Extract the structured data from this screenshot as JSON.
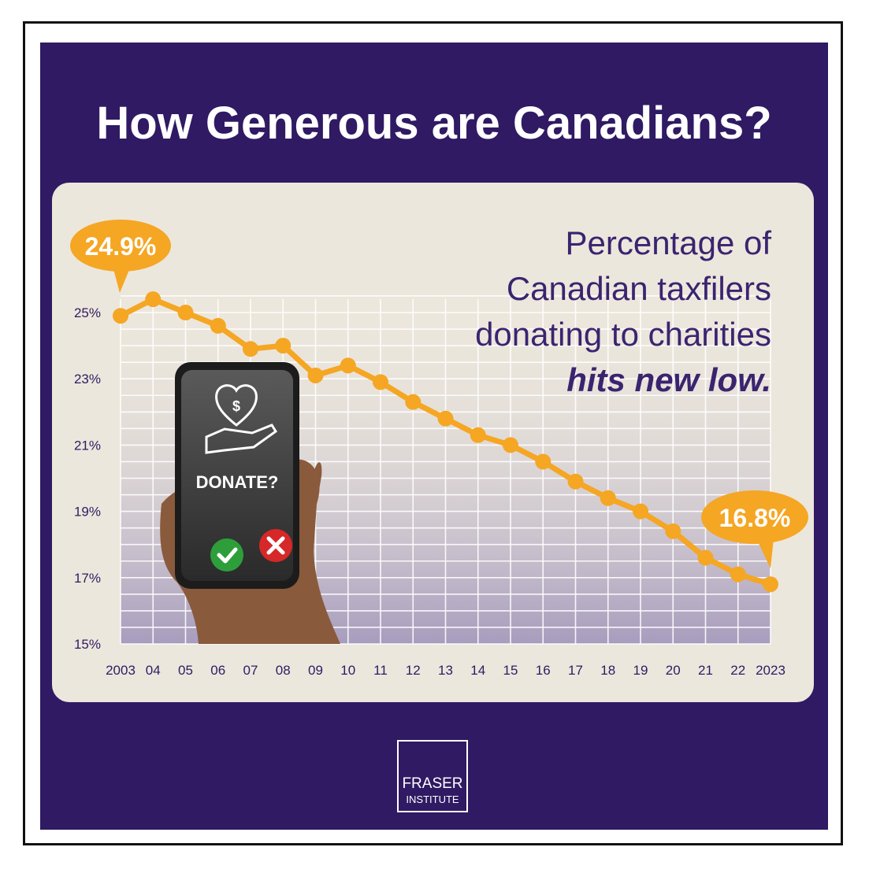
{
  "title": "How Generous are Canadians?",
  "headline": {
    "line1": "Percentage of",
    "line2": "Canadian taxfilers",
    "line3": "donating to charities",
    "line4": "hits new low."
  },
  "callouts": {
    "start": "24.9%",
    "end": "16.8%"
  },
  "phone": {
    "prompt": "DONATE?",
    "icon": "heart-dollar-hand-icon",
    "yes_icon": "check-icon",
    "no_icon": "x-icon"
  },
  "logo": {
    "line1": "FRASER",
    "line2": "INSTITUTE"
  },
  "colors": {
    "background": "#2f1a63",
    "panel": "#ece7dc",
    "line": "#f5a623",
    "text": "#3a2470"
  },
  "chart_data": {
    "type": "line",
    "x": [
      "2003",
      "04",
      "05",
      "06",
      "07",
      "08",
      "09",
      "10",
      "11",
      "12",
      "13",
      "14",
      "15",
      "16",
      "17",
      "18",
      "19",
      "20",
      "21",
      "22",
      "2023"
    ],
    "series": [
      {
        "values": [
          24.9,
          25.4,
          25.0,
          24.6,
          23.9,
          24.0,
          23.1,
          23.4,
          22.9,
          22.3,
          21.8,
          21.3,
          21.0,
          20.5,
          19.9,
          19.4,
          19.0,
          18.4,
          17.6,
          17.1,
          16.8
        ]
      }
    ],
    "yticks": [
      "25%",
      "23%",
      "21%",
      "19%",
      "17%",
      "15%"
    ],
    "ylim": [
      15,
      25.6
    ],
    "grid": true
  }
}
